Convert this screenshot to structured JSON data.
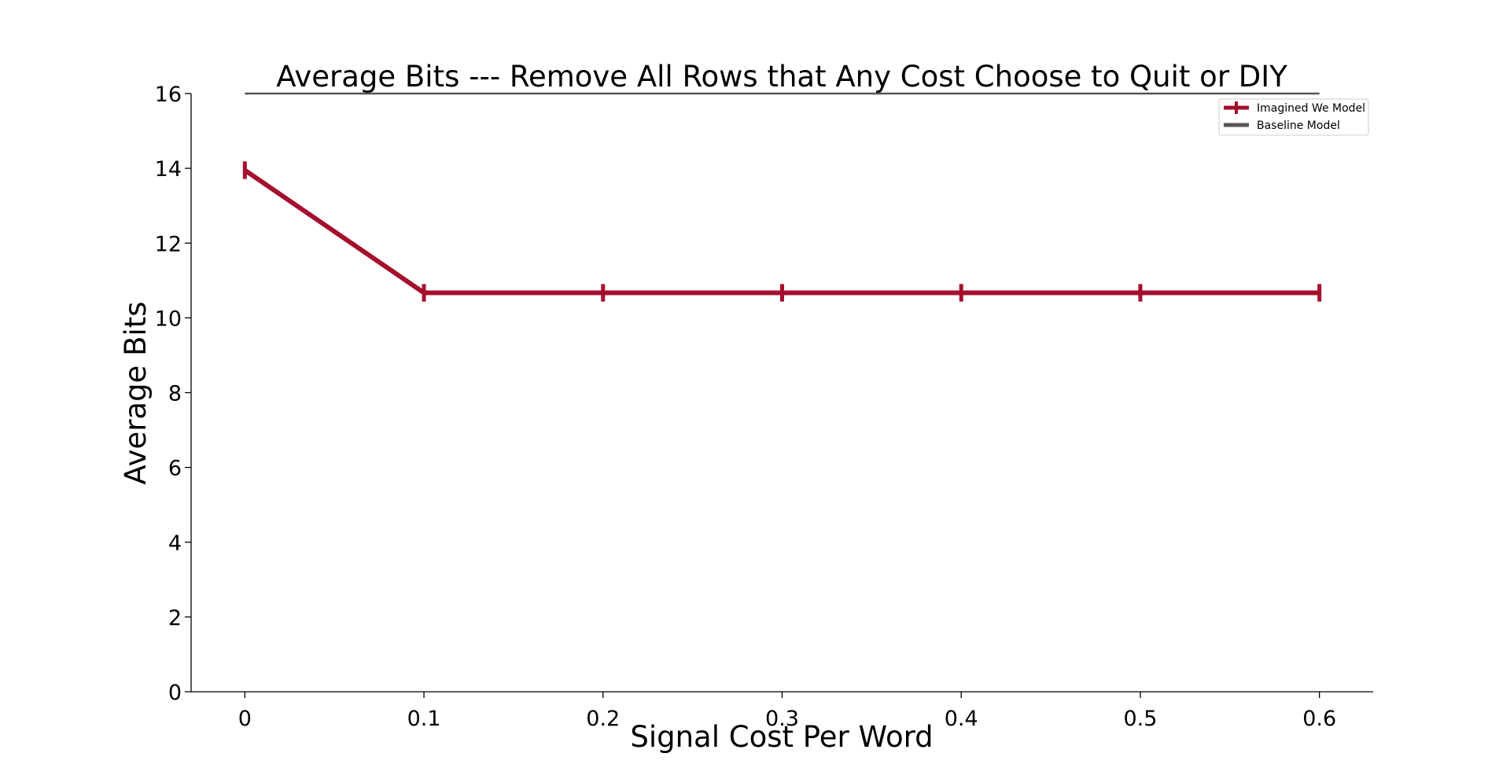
{
  "chart_data": {
    "type": "line",
    "title": "Average Bits --- Remove All Rows that Any Cost Choose to Quit or DIY",
    "xlabel": "Signal Cost Per Word",
    "ylabel": "Average Bits",
    "x": [
      0,
      0.1,
      0.2,
      0.3,
      0.4,
      0.5,
      0.6
    ],
    "x_tick_labels": [
      "0",
      "0.1",
      "0.2",
      "0.3",
      "0.4",
      "0.5",
      "0.6"
    ],
    "y_ticks": [
      0,
      2,
      4,
      6,
      8,
      10,
      12,
      14,
      16
    ],
    "y_tick_labels": [
      "0",
      "2",
      "4",
      "6",
      "8",
      "10",
      "12",
      "14",
      "16"
    ],
    "xlim": [
      -0.03,
      0.63
    ],
    "ylim": [
      0,
      16
    ],
    "grid": false,
    "legend_position": "top-right",
    "series": [
      {
        "name": "Imagined We Model",
        "color": "#A50F2D",
        "marker": "errorbar",
        "values": [
          13.95,
          10.67,
          10.67,
          10.67,
          10.67,
          10.67,
          10.67
        ],
        "error": [
          0.15,
          0.15,
          0.15,
          0.15,
          0.15,
          0.15,
          0.15
        ]
      },
      {
        "name": "Baseline Model",
        "color": "#555555",
        "marker": "none",
        "values": [
          16,
          16,
          16,
          16,
          16,
          16,
          16
        ]
      }
    ]
  }
}
